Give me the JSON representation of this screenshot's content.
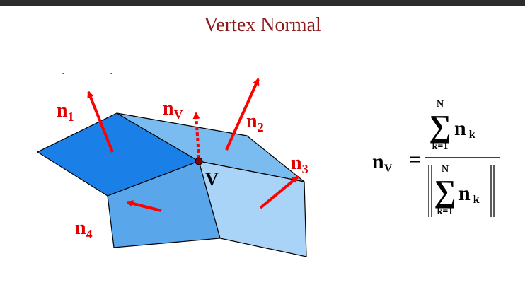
{
  "slide": {
    "title": "Vertex Normal",
    "dots": [
      ".",
      "."
    ]
  },
  "diagram": {
    "labels": {
      "n1": {
        "base": "n",
        "sub": "1"
      },
      "n2": {
        "base": "n",
        "sub": "2"
      },
      "n3": {
        "base": "n",
        "sub": "3"
      },
      "n4": {
        "base": "n",
        "sub": "4"
      },
      "nv": {
        "base": "n",
        "sub": "V"
      },
      "vertex": "V"
    },
    "colors": {
      "face1": "#1a7fe6",
      "face2": "#7bbcf0",
      "face3": "#a9d3f7",
      "face4": "#5aa6ea",
      "arrow": "#ff0000",
      "vertex": "#8b0000"
    }
  },
  "formula": {
    "lhs": {
      "base": "n",
      "sub": "V"
    },
    "equals": "=",
    "sum_upper": "N",
    "sum_lower": "k=1",
    "sigma": "∑",
    "term": {
      "base": "n",
      "sub": "k"
    }
  }
}
